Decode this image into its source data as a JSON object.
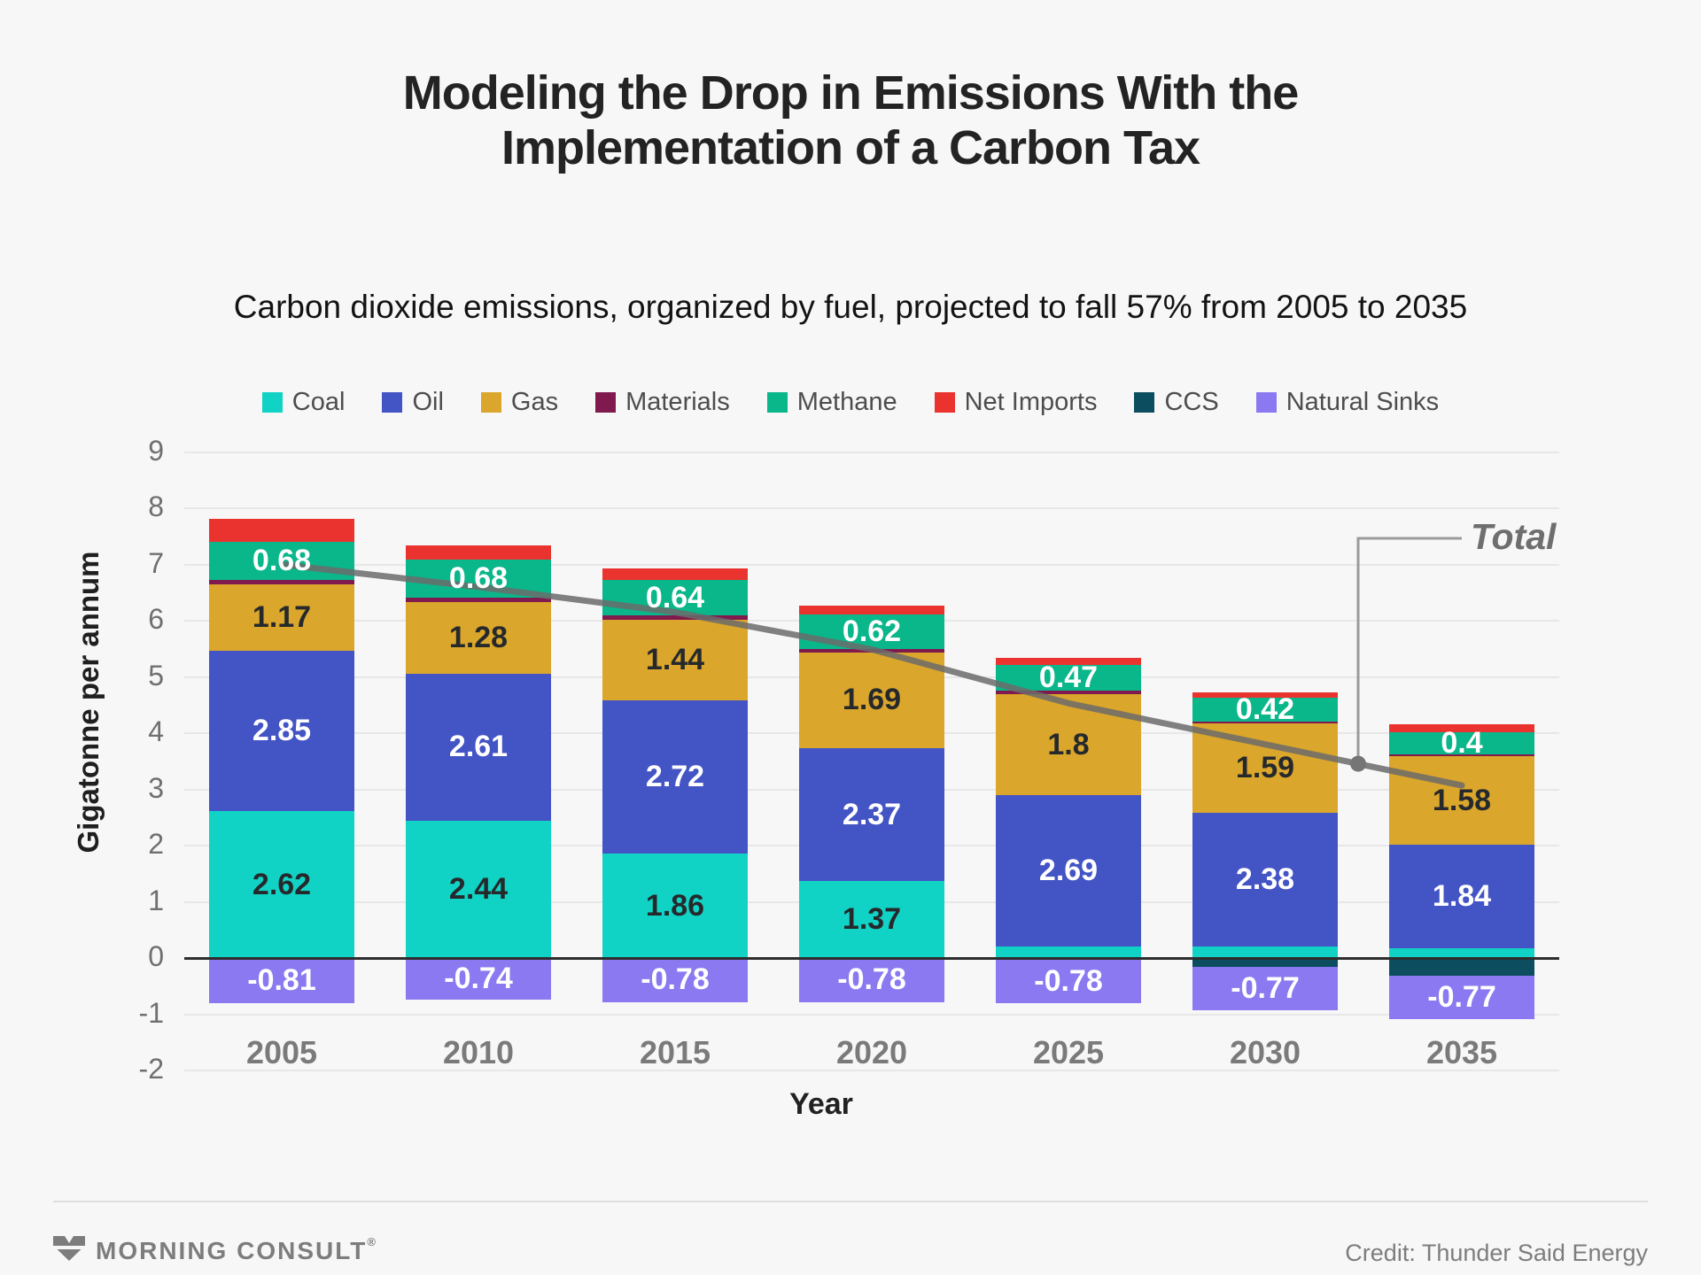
{
  "header": {
    "title_lines": [
      "Modeling the Drop in Emissions With the",
      "Implementation of a Carbon Tax"
    ],
    "subtitle": "Carbon dioxide emissions, organized by fuel, projected to fall 57% from 2005 to 2035"
  },
  "chart_data": {
    "type": "bar",
    "subtype": "stacked-bar-with-total-line",
    "categories": [
      "2005",
      "2010",
      "2015",
      "2020",
      "2025",
      "2030",
      "2035"
    ],
    "series": [
      {
        "name": "Coal",
        "color": "#11d3c5",
        "label_color": "#26292c",
        "values": [
          2.62,
          2.44,
          1.86,
          1.37,
          0.21,
          0.2,
          0.17
        ],
        "labels": [
          "2.62",
          "2.44",
          "1.86",
          "1.37",
          null,
          null,
          null
        ]
      },
      {
        "name": "Oil",
        "color": "#4354c5",
        "label_color": "#ffffff",
        "values": [
          2.85,
          2.61,
          2.72,
          2.37,
          2.69,
          2.38,
          1.84
        ],
        "labels": [
          "2.85",
          "2.61",
          "2.72",
          "2.37",
          "2.69",
          "2.38",
          "1.84"
        ]
      },
      {
        "name": "Gas",
        "color": "#daa62b",
        "label_color": "#26292c",
        "values": [
          1.17,
          1.28,
          1.44,
          1.69,
          1.8,
          1.59,
          1.58
        ],
        "labels": [
          "1.17",
          "1.28",
          "1.44",
          "1.69",
          "1.8",
          "1.59",
          "1.58"
        ]
      },
      {
        "name": "Materials",
        "color": "#801a4e",
        "label_color": "#ffffff",
        "values": [
          0.08,
          0.08,
          0.07,
          0.06,
          0.05,
          0.04,
          0.03
        ],
        "labels": [
          null,
          null,
          null,
          null,
          null,
          null,
          null
        ]
      },
      {
        "name": "Methane",
        "color": "#0ab78a",
        "label_color": "#ffffff",
        "values": [
          0.68,
          0.68,
          0.64,
          0.62,
          0.47,
          0.42,
          0.4
        ],
        "labels": [
          "0.68",
          "0.68",
          "0.64",
          "0.62",
          "0.47",
          "0.42",
          "0.4"
        ]
      },
      {
        "name": "Net Imports",
        "color": "#ea332f",
        "label_color": "#ffffff",
        "values": [
          0.41,
          0.25,
          0.2,
          0.16,
          0.12,
          0.1,
          0.13
        ],
        "labels": [
          null,
          null,
          null,
          null,
          null,
          null,
          null
        ]
      },
      {
        "name": "CCS",
        "color": "#0c4d60",
        "label_color": "#ffffff",
        "values": [
          0,
          0,
          0,
          0,
          -0.03,
          -0.16,
          -0.31
        ],
        "labels": [
          null,
          null,
          null,
          null,
          null,
          null,
          null
        ]
      },
      {
        "name": "Natural Sinks",
        "color": "#8a79f0",
        "label_color": "#ffffff",
        "values": [
          -0.81,
          -0.74,
          -0.78,
          -0.78,
          -0.78,
          -0.77,
          -0.77
        ],
        "labels": [
          "-0.81",
          "-0.74",
          "-0.78",
          "-0.78",
          "-0.78",
          "-0.77",
          "-0.77"
        ]
      }
    ],
    "line": {
      "name": "Total",
      "color": "#6b6b6b",
      "values": [
        7.0,
        6.6,
        6.15,
        5.49,
        4.53,
        3.8,
        3.07
      ]
    },
    "xlabel": "Year",
    "ylabel": "Gigatonne per annum",
    "ylim": [
      -2,
      9
    ],
    "yticks": [
      9,
      8,
      7,
      6,
      5,
      4,
      3,
      2,
      1,
      0,
      -1,
      -2
    ],
    "grid": true,
    "legend_position": "top"
  },
  "footer": {
    "brand": "MORNING CONSULT",
    "reg": "®",
    "credit": "Credit: Thunder Said Energy"
  }
}
